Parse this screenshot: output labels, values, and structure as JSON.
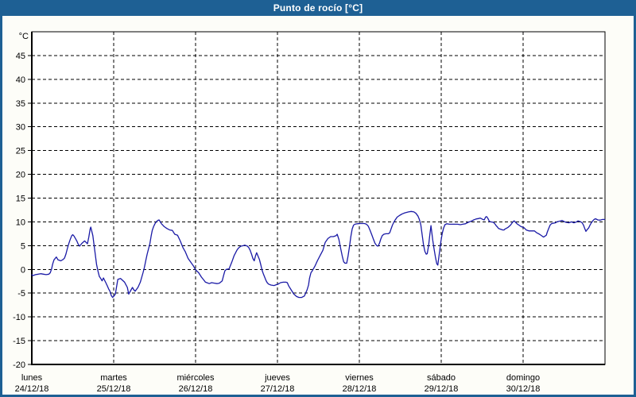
{
  "window": {
    "title": "Punto de rocío [°C]"
  },
  "colors": {
    "titlebar_bg": "#1e6094",
    "window_border": "#1e6094",
    "title_text": "#ffffff",
    "content_bg": "#fdfdf8",
    "plot_bg": "#ffffff",
    "grid": "#000000",
    "axis": "#000000",
    "tick_text": "#000000",
    "line": "#1a1aa6"
  },
  "chart_data": {
    "type": "line",
    "title": "Punto de rocío [°C]",
    "y_unit": "°C",
    "ylim": [
      -20,
      50
    ],
    "ytick_min": -20,
    "ytick_max": 45,
    "ytick_step": 5,
    "grid": true,
    "x_total_hours": 168,
    "x_days": [
      {
        "name": "lunes",
        "date": "24/12/18"
      },
      {
        "name": "martes",
        "date": "25/12/18"
      },
      {
        "name": "miércoles",
        "date": "26/12/18"
      },
      {
        "name": "jueves",
        "date": "27/12/18"
      },
      {
        "name": "viernes",
        "date": "28/12/18"
      },
      {
        "name": "sábado",
        "date": "29/12/18"
      },
      {
        "name": "domingo",
        "date": "30/12/18"
      }
    ],
    "series": [
      {
        "name": "Punto de rocío",
        "color": "#1a1aa6",
        "points_h_degC": [
          [
            0.0,
            -1.1
          ],
          [
            0.3,
            -1.3
          ],
          [
            1.1,
            -1.1
          ],
          [
            1.9,
            -1.0
          ],
          [
            2.6,
            -0.9
          ],
          [
            3.4,
            -1.0
          ],
          [
            4.2,
            -1.1
          ],
          [
            5.0,
            -1.0
          ],
          [
            5.4,
            -0.7
          ],
          [
            5.8,
            0.1
          ],
          [
            6.1,
            1.1
          ],
          [
            6.5,
            2.0
          ],
          [
            7.2,
            2.6
          ],
          [
            7.7,
            2.0
          ],
          [
            8.5,
            1.8
          ],
          [
            9.2,
            2.1
          ],
          [
            9.6,
            2.4
          ],
          [
            10.0,
            3.2
          ],
          [
            10.4,
            4.3
          ],
          [
            10.8,
            5.3
          ],
          [
            11.2,
            6.2
          ],
          [
            11.7,
            7.1
          ],
          [
            12.0,
            7.3
          ],
          [
            12.4,
            7.0
          ],
          [
            12.8,
            6.5
          ],
          [
            13.2,
            6.0
          ],
          [
            13.6,
            5.3
          ],
          [
            14.0,
            4.9
          ],
          [
            14.7,
            5.5
          ],
          [
            15.5,
            6.0
          ],
          [
            15.9,
            5.7
          ],
          [
            16.3,
            5.4
          ],
          [
            16.7,
            6.8
          ],
          [
            17.1,
            8.5
          ],
          [
            17.3,
            8.9
          ],
          [
            17.9,
            7.1
          ],
          [
            18.2,
            5.4
          ],
          [
            18.6,
            3.2
          ],
          [
            19.0,
            1.0
          ],
          [
            19.4,
            -0.4
          ],
          [
            19.8,
            -1.5
          ],
          [
            20.2,
            -1.9
          ],
          [
            20.6,
            -2.4
          ],
          [
            21.0,
            -1.8
          ],
          [
            21.7,
            -2.8
          ],
          [
            22.1,
            -3.4
          ],
          [
            22.5,
            -4.1
          ],
          [
            22.9,
            -4.6
          ],
          [
            23.3,
            -5.5
          ],
          [
            23.7,
            -5.9
          ],
          [
            24.1,
            -5.6
          ],
          [
            24.5,
            -5.2
          ],
          [
            25.2,
            -2.1
          ],
          [
            26.0,
            -1.9
          ],
          [
            26.3,
            -2.1
          ],
          [
            27.2,
            -2.7
          ],
          [
            28.0,
            -3.8
          ],
          [
            28.4,
            -5.2
          ],
          [
            29.1,
            -4.3
          ],
          [
            29.5,
            -3.8
          ],
          [
            29.9,
            -4.3
          ],
          [
            30.3,
            -4.6
          ],
          [
            31.1,
            -3.8
          ],
          [
            31.8,
            -2.7
          ],
          [
            32.6,
            -0.7
          ],
          [
            33.0,
            0.4
          ],
          [
            33.4,
            1.8
          ],
          [
            33.8,
            3.2
          ],
          [
            34.2,
            4.3
          ],
          [
            34.6,
            5.4
          ],
          [
            35.0,
            7.1
          ],
          [
            35.3,
            8.2
          ],
          [
            35.7,
            9.0
          ],
          [
            36.1,
            9.6
          ],
          [
            36.5,
            10.0
          ],
          [
            36.9,
            10.3
          ],
          [
            37.3,
            10.4
          ],
          [
            38.0,
            9.6
          ],
          [
            38.8,
            9.0
          ],
          [
            39.6,
            8.6
          ],
          [
            40.4,
            8.3
          ],
          [
            41.2,
            8.2
          ],
          [
            41.9,
            7.4
          ],
          [
            42.7,
            7.2
          ],
          [
            43.5,
            6.0
          ],
          [
            44.3,
            4.6
          ],
          [
            45.0,
            3.7
          ],
          [
            45.8,
            2.3
          ],
          [
            46.6,
            1.5
          ],
          [
            47.4,
            0.7
          ],
          [
            48.0,
            -0.1
          ],
          [
            48.9,
            -0.7
          ],
          [
            49.7,
            -1.6
          ],
          [
            50.5,
            -2.3
          ],
          [
            50.9,
            -2.7
          ],
          [
            51.3,
            -2.8
          ],
          [
            52.0,
            -3.0
          ],
          [
            52.7,
            -2.8
          ],
          [
            53.5,
            -2.9
          ],
          [
            54.3,
            -3.0
          ],
          [
            55.0,
            -2.9
          ],
          [
            55.8,
            -2.4
          ],
          [
            56.2,
            -1.3
          ],
          [
            56.6,
            -0.3
          ],
          [
            57.0,
            0.0
          ],
          [
            57.8,
            0.1
          ],
          [
            58.6,
            1.5
          ],
          [
            59.3,
            2.9
          ],
          [
            60.1,
            4.0
          ],
          [
            60.5,
            4.4
          ],
          [
            60.9,
            4.7
          ],
          [
            61.3,
            4.9
          ],
          [
            62.0,
            5.0
          ],
          [
            62.4,
            5.1
          ],
          [
            63.2,
            4.9
          ],
          [
            63.6,
            4.6
          ],
          [
            64.0,
            4.0
          ],
          [
            64.4,
            3.2
          ],
          [
            64.8,
            2.3
          ],
          [
            65.2,
            1.8
          ],
          [
            65.6,
            2.9
          ],
          [
            65.9,
            3.5
          ],
          [
            66.7,
            2.1
          ],
          [
            67.1,
            1.0
          ],
          [
            67.5,
            -0.2
          ],
          [
            67.9,
            -1.0
          ],
          [
            68.3,
            -1.7
          ],
          [
            68.7,
            -2.4
          ],
          [
            69.0,
            -2.8
          ],
          [
            69.4,
            -3.1
          ],
          [
            70.1,
            -3.3
          ],
          [
            71.0,
            -3.4
          ],
          [
            71.8,
            -3.2
          ],
          [
            72.2,
            -3.1
          ],
          [
            72.9,
            -2.8
          ],
          [
            73.7,
            -2.7
          ],
          [
            74.5,
            -2.7
          ],
          [
            74.9,
            -2.8
          ],
          [
            75.3,
            -3.5
          ],
          [
            76.0,
            -4.3
          ],
          [
            76.8,
            -5.2
          ],
          [
            77.6,
            -5.7
          ],
          [
            78.3,
            -5.9
          ],
          [
            79.1,
            -5.9
          ],
          [
            79.9,
            -5.6
          ],
          [
            80.7,
            -4.3
          ],
          [
            81.1,
            -3.3
          ],
          [
            81.4,
            -1.9
          ],
          [
            81.8,
            -0.7
          ],
          [
            82.2,
            -0.3
          ],
          [
            83.0,
            0.7
          ],
          [
            83.7,
            1.8
          ],
          [
            84.5,
            2.9
          ],
          [
            85.3,
            4.0
          ],
          [
            86.0,
            5.7
          ],
          [
            86.8,
            6.5
          ],
          [
            87.6,
            6.9
          ],
          [
            88.4,
            6.9
          ],
          [
            89.2,
            7.1
          ],
          [
            89.5,
            7.4
          ],
          [
            90.0,
            6.3
          ],
          [
            90.5,
            4.5
          ],
          [
            91.0,
            2.8
          ],
          [
            91.4,
            1.6
          ],
          [
            91.8,
            1.3
          ],
          [
            92.3,
            1.3
          ],
          [
            92.7,
            2.8
          ],
          [
            93.1,
            4.8
          ],
          [
            93.5,
            6.9
          ],
          [
            93.9,
            8.5
          ],
          [
            94.3,
            9.3
          ],
          [
            94.7,
            9.5
          ],
          [
            95.4,
            9.6
          ],
          [
            96.2,
            9.65
          ],
          [
            97.5,
            9.65
          ],
          [
            98.1,
            9.5
          ],
          [
            98.6,
            9.1
          ],
          [
            99.1,
            8.3
          ],
          [
            99.6,
            7.4
          ],
          [
            100.1,
            6.4
          ],
          [
            100.6,
            5.5
          ],
          [
            101.1,
            5.0
          ],
          [
            101.5,
            4.9
          ],
          [
            101.9,
            5.5
          ],
          [
            102.3,
            6.4
          ],
          [
            102.7,
            7.1
          ],
          [
            103.2,
            7.4
          ],
          [
            103.8,
            7.5
          ],
          [
            104.5,
            7.5
          ],
          [
            104.9,
            7.7
          ],
          [
            105.3,
            8.5
          ],
          [
            105.7,
            9.3
          ],
          [
            106.1,
            9.9
          ],
          [
            106.5,
            10.4
          ],
          [
            107.1,
            11.0
          ],
          [
            107.9,
            11.4
          ],
          [
            108.6,
            11.7
          ],
          [
            109.3,
            11.9
          ],
          [
            110.4,
            12.1
          ],
          [
            111.2,
            12.2
          ],
          [
            112.0,
            12.1
          ],
          [
            112.6,
            11.8
          ],
          [
            113.2,
            11.2
          ],
          [
            113.6,
            10.5
          ],
          [
            114.0,
            9.4
          ],
          [
            114.4,
            7.3
          ],
          [
            114.8,
            5.2
          ],
          [
            115.2,
            3.8
          ],
          [
            115.6,
            3.2
          ],
          [
            115.9,
            3.3
          ],
          [
            116.3,
            5.0
          ],
          [
            116.7,
            7.5
          ],
          [
            117.0,
            9.2
          ],
          [
            117.5,
            6.2
          ],
          [
            117.9,
            4.3
          ],
          [
            118.3,
            2.6
          ],
          [
            118.7,
            1.2
          ],
          [
            119.0,
            0.9
          ],
          [
            119.5,
            3.7
          ],
          [
            119.9,
            5.9
          ],
          [
            120.3,
            7.6
          ],
          [
            120.7,
            8.7
          ],
          [
            121.1,
            9.4
          ],
          [
            121.6,
            9.6
          ],
          [
            122.4,
            9.5
          ],
          [
            124.8,
            9.5
          ],
          [
            125.6,
            9.4
          ],
          [
            126.3,
            9.5
          ],
          [
            127.1,
            9.6
          ],
          [
            127.9,
            9.9
          ],
          [
            128.7,
            10.1
          ],
          [
            129.5,
            10.4
          ],
          [
            130.2,
            10.6
          ],
          [
            131.0,
            10.7
          ],
          [
            131.4,
            10.8
          ],
          [
            132.2,
            10.5
          ],
          [
            132.6,
            10.4
          ],
          [
            133.0,
            11.0
          ],
          [
            133.3,
            11.1
          ],
          [
            133.7,
            10.7
          ],
          [
            134.1,
            10.1
          ],
          [
            134.5,
            10.0
          ],
          [
            135.3,
            9.9
          ],
          [
            135.7,
            9.6
          ],
          [
            136.1,
            9.2
          ],
          [
            136.5,
            8.9
          ],
          [
            136.8,
            8.6
          ],
          [
            137.2,
            8.5
          ],
          [
            138.0,
            8.3
          ],
          [
            138.4,
            8.3
          ],
          [
            138.7,
            8.5
          ],
          [
            139.5,
            8.8
          ],
          [
            140.3,
            9.3
          ],
          [
            141.0,
            10.0
          ],
          [
            141.4,
            10.2
          ],
          [
            141.8,
            9.9
          ],
          [
            142.2,
            9.6
          ],
          [
            142.6,
            9.4
          ],
          [
            143.4,
            9.0
          ],
          [
            144.2,
            8.8
          ],
          [
            144.9,
            8.3
          ],
          [
            145.7,
            8.1
          ],
          [
            147.3,
            8.1
          ],
          [
            148.0,
            7.7
          ],
          [
            148.8,
            7.4
          ],
          [
            149.6,
            7.0
          ],
          [
            150.0,
            6.8
          ],
          [
            150.8,
            7.2
          ],
          [
            151.1,
            7.9
          ],
          [
            151.5,
            8.6
          ],
          [
            151.9,
            9.3
          ],
          [
            152.3,
            9.6
          ],
          [
            152.7,
            9.7
          ],
          [
            153.5,
            9.8
          ],
          [
            153.9,
            10.0
          ],
          [
            155.0,
            10.2
          ],
          [
            155.4,
            10.3
          ],
          [
            156.2,
            10.0
          ],
          [
            156.6,
            9.9
          ],
          [
            157.4,
            9.8
          ],
          [
            158.2,
            10.0
          ],
          [
            158.9,
            9.8
          ],
          [
            159.7,
            10.0
          ],
          [
            160.1,
            10.2
          ],
          [
            160.9,
            10.0
          ],
          [
            161.3,
            9.8
          ],
          [
            161.7,
            9.3
          ],
          [
            162.0,
            8.7
          ],
          [
            162.4,
            8.0
          ],
          [
            162.8,
            8.4
          ],
          [
            163.2,
            8.7
          ],
          [
            163.6,
            9.3
          ],
          [
            164.0,
            9.8
          ],
          [
            164.4,
            10.2
          ],
          [
            164.8,
            10.5
          ],
          [
            165.2,
            10.65
          ],
          [
            165.9,
            10.4
          ],
          [
            166.6,
            10.35
          ],
          [
            167.3,
            10.5
          ],
          [
            167.9,
            10.5
          ]
        ]
      }
    ]
  }
}
